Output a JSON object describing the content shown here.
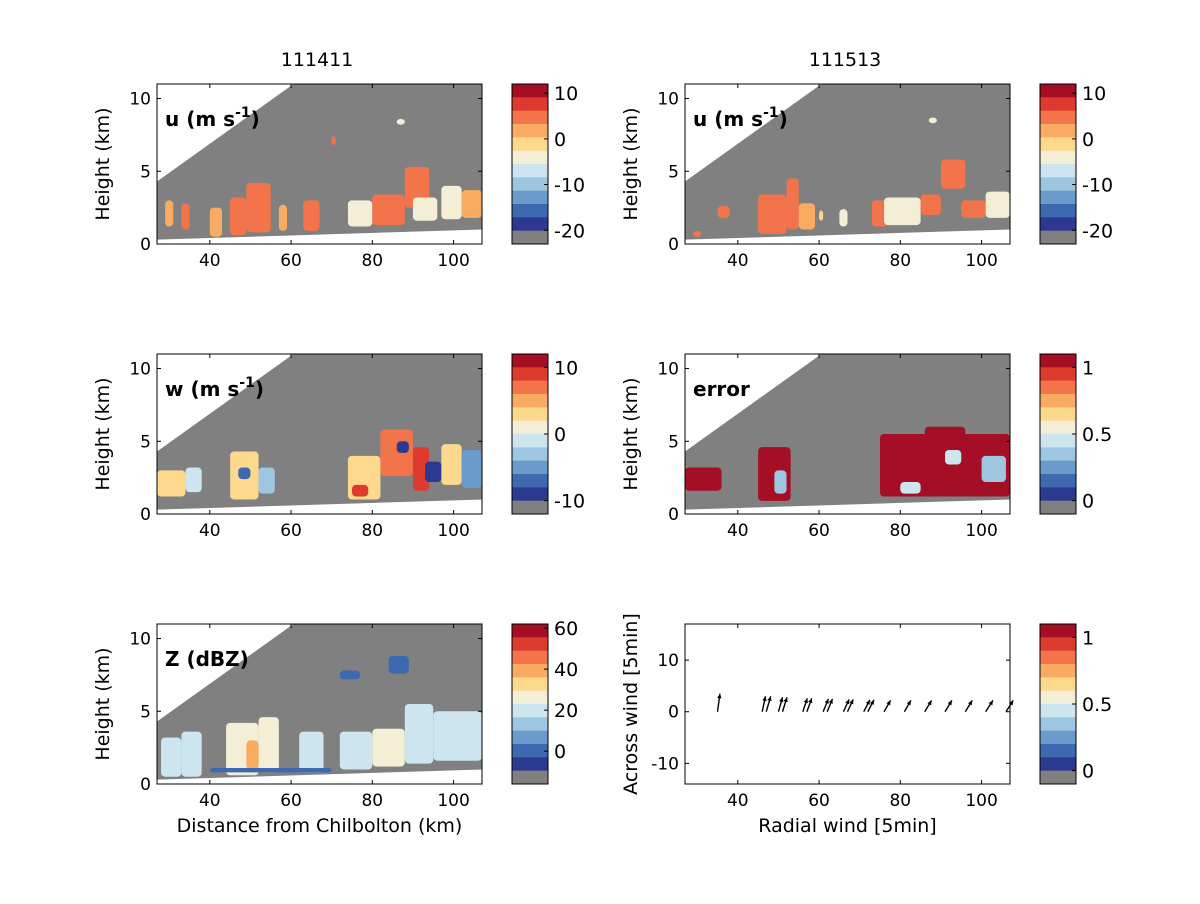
{
  "colormaps": {
    "diverging": [
      "#808080",
      "#2b3990",
      "#3d69b0",
      "#6a9ccb",
      "#9ec6e0",
      "#cde5ef",
      "#f4eed6",
      "#fcd98c",
      "#f9ab61",
      "#f3744a",
      "#dc3b2e",
      "#a50f26"
    ]
  },
  "columns": [
    {
      "title": "111411"
    },
    {
      "title": "111513"
    }
  ],
  "chart_data": [
    {
      "id": "u-111411",
      "type": "heatmap",
      "column": 0,
      "row": 0,
      "label_main": "u (m s",
      "label_sup": "-1",
      "label_end": ")",
      "xlabel": "",
      "ylabel": "Height (km)",
      "xlim": [
        27,
        107
      ],
      "ylim": [
        0,
        11
      ],
      "xticks": [
        40,
        60,
        80,
        100
      ],
      "yticks": [
        0,
        5,
        10
      ],
      "colorbar": {
        "ticks": [
          10,
          0,
          -10,
          -20
        ],
        "range": [
          -23,
          12
        ]
      },
      "cells": [
        {
          "x": [
            29,
            31
          ],
          "y": [
            1.2,
            3.0
          ],
          "v": 2
        },
        {
          "x": [
            33,
            35
          ],
          "y": [
            1.0,
            2.8
          ],
          "v": 3
        },
        {
          "x": [
            40,
            43
          ],
          "y": [
            0.5,
            2.5
          ],
          "v": 2
        },
        {
          "x": [
            45,
            49
          ],
          "y": [
            0.6,
            3.2
          ],
          "v": 4
        },
        {
          "x": [
            49,
            55
          ],
          "y": [
            0.8,
            4.2
          ],
          "v": 3
        },
        {
          "x": [
            57,
            59
          ],
          "y": [
            0.9,
            2.7
          ],
          "v": 2
        },
        {
          "x": [
            63,
            67
          ],
          "y": [
            0.9,
            3.0
          ],
          "v": 3
        },
        {
          "x": [
            74,
            80
          ],
          "y": [
            1.2,
            3.0
          ],
          "v": -4
        },
        {
          "x": [
            80,
            88
          ],
          "y": [
            1.3,
            3.4
          ],
          "v": 3
        },
        {
          "x": [
            88,
            94
          ],
          "y": [
            2.5,
            5.3
          ],
          "v": 4
        },
        {
          "x": [
            90,
            96
          ],
          "y": [
            1.6,
            3.2
          ],
          "v": -6
        },
        {
          "x": [
            97,
            102
          ],
          "y": [
            1.7,
            4.0
          ],
          "v": -7
        },
        {
          "x": [
            102,
            107
          ],
          "y": [
            1.8,
            3.7
          ],
          "v": 2
        },
        {
          "x": [
            70,
            71
          ],
          "y": [
            6.8,
            7.4
          ],
          "v": 4
        },
        {
          "x": [
            86,
            88
          ],
          "y": [
            8.2,
            8.6
          ],
          "v": -5
        }
      ]
    },
    {
      "id": "u-111513",
      "type": "heatmap",
      "column": 1,
      "row": 0,
      "label_main": "u (m s",
      "label_sup": "-1",
      "label_end": ")",
      "xlabel": "",
      "ylabel": "Height (km)",
      "xlim": [
        27,
        107
      ],
      "ylim": [
        0,
        11
      ],
      "xticks": [
        40,
        60,
        80,
        100
      ],
      "yticks": [
        0,
        5,
        10
      ],
      "colorbar": {
        "ticks": [
          10,
          0,
          -10,
          -20
        ],
        "range": [
          -23,
          12
        ]
      },
      "cells": [
        {
          "x": [
            29,
            31
          ],
          "y": [
            0.5,
            0.9
          ],
          "v": 5
        },
        {
          "x": [
            35,
            38
          ],
          "y": [
            1.8,
            2.6
          ],
          "v": 3
        },
        {
          "x": [
            45,
            52
          ],
          "y": [
            0.7,
            3.4
          ],
          "v": 3
        },
        {
          "x": [
            52,
            55
          ],
          "y": [
            1.0,
            4.5
          ],
          "v": 4
        },
        {
          "x": [
            55,
            59
          ],
          "y": [
            1.0,
            2.8
          ],
          "v": 2
        },
        {
          "x": [
            60,
            61
          ],
          "y": [
            1.6,
            2.3
          ],
          "v": -3
        },
        {
          "x": [
            65,
            67
          ],
          "y": [
            1.2,
            2.4
          ],
          "v": -5
        },
        {
          "x": [
            73,
            77
          ],
          "y": [
            1.2,
            3.0
          ],
          "v": 3
        },
        {
          "x": [
            76,
            85
          ],
          "y": [
            1.3,
            3.2
          ],
          "v": -5
        },
        {
          "x": [
            85,
            90
          ],
          "y": [
            2.0,
            3.4
          ],
          "v": 3
        },
        {
          "x": [
            90,
            96
          ],
          "y": [
            3.8,
            5.8
          ],
          "v": 4
        },
        {
          "x": [
            95,
            101
          ],
          "y": [
            1.8,
            3.0
          ],
          "v": 3
        },
        {
          "x": [
            101,
            107
          ],
          "y": [
            1.8,
            3.6
          ],
          "v": -6
        },
        {
          "x": [
            87,
            89
          ],
          "y": [
            8.3,
            8.7
          ],
          "v": -4
        }
      ]
    },
    {
      "id": "w-111411",
      "type": "heatmap",
      "column": 0,
      "row": 1,
      "label_main": "w (m s",
      "label_sup": "-1",
      "label_end": ")",
      "xlabel": "",
      "ylabel": "Height (km)",
      "xlim": [
        27,
        107
      ],
      "ylim": [
        0,
        11
      ],
      "xticks": [
        40,
        60,
        80,
        100
      ],
      "yticks": [
        0,
        5,
        10
      ],
      "colorbar": {
        "ticks": [
          10,
          0,
          -10
        ],
        "range": [
          -12,
          12
        ]
      },
      "cells": [
        {
          "x": [
            27,
            34
          ],
          "y": [
            1.2,
            3.0
          ],
          "v": 2
        },
        {
          "x": [
            34,
            38
          ],
          "y": [
            1.5,
            3.2
          ],
          "v": -3
        },
        {
          "x": [
            45,
            52
          ],
          "y": [
            1.0,
            4.3
          ],
          "v": 3
        },
        {
          "x": [
            47,
            50
          ],
          "y": [
            2.4,
            3.2
          ],
          "v": -9
        },
        {
          "x": [
            52,
            56
          ],
          "y": [
            1.4,
            3.2
          ],
          "v": -4
        },
        {
          "x": [
            74,
            82
          ],
          "y": [
            1.0,
            4.0
          ],
          "v": 2
        },
        {
          "x": [
            75,
            79
          ],
          "y": [
            1.2,
            2.0
          ],
          "v": 9
        },
        {
          "x": [
            82,
            90
          ],
          "y": [
            2.6,
            5.8
          ],
          "v": 6
        },
        {
          "x": [
            86,
            89
          ],
          "y": [
            4.2,
            5.0
          ],
          "v": -10
        },
        {
          "x": [
            90,
            94
          ],
          "y": [
            1.6,
            4.6
          ],
          "v": 8
        },
        {
          "x": [
            93,
            97
          ],
          "y": [
            2.2,
            3.6
          ],
          "v": -11
        },
        {
          "x": [
            97,
            102
          ],
          "y": [
            2.0,
            4.8
          ],
          "v": 3
        },
        {
          "x": [
            102,
            107
          ],
          "y": [
            1.8,
            4.4
          ],
          "v": -6
        }
      ]
    },
    {
      "id": "error-111513",
      "type": "heatmap",
      "column": 1,
      "row": 1,
      "label_main": "error",
      "label_sup": "",
      "label_end": "",
      "xlabel": "",
      "ylabel": "Height (km)",
      "xlim": [
        27,
        107
      ],
      "ylim": [
        0,
        11
      ],
      "xticks": [
        40,
        60,
        80,
        100
      ],
      "yticks": [
        0,
        5,
        10
      ],
      "colorbar": {
        "ticks": [
          1,
          0.5,
          0
        ],
        "range": [
          -0.1,
          1.1
        ]
      },
      "cells": [
        {
          "x": [
            27,
            36
          ],
          "y": [
            1.6,
            3.2
          ],
          "v": 1.05
        },
        {
          "x": [
            45,
            53
          ],
          "y": [
            0.9,
            4.6
          ],
          "v": 1.05
        },
        {
          "x": [
            49,
            52
          ],
          "y": [
            1.4,
            3.0
          ],
          "v": 0.3
        },
        {
          "x": [
            75,
            107
          ],
          "y": [
            1.2,
            5.5
          ],
          "v": 1.05
        },
        {
          "x": [
            86,
            96
          ],
          "y": [
            4.0,
            6.0
          ],
          "v": 1.05
        },
        {
          "x": [
            80,
            85
          ],
          "y": [
            1.4,
            2.2
          ],
          "v": 0.35
        },
        {
          "x": [
            91,
            95
          ],
          "y": [
            3.4,
            4.4
          ],
          "v": 0.4
        },
        {
          "x": [
            100,
            106
          ],
          "y": [
            2.2,
            4.0
          ],
          "v": 0.3
        }
      ]
    },
    {
      "id": "z-111411",
      "type": "heatmap",
      "column": 0,
      "row": 2,
      "label_main": "Z (dBZ)",
      "label_sup": "",
      "label_end": "",
      "xlabel": "Distance from Chilbolton (km)",
      "ylabel": "Height (km)",
      "xlim": [
        27,
        107
      ],
      "ylim": [
        0,
        11
      ],
      "xticks": [
        40,
        60,
        80,
        100
      ],
      "yticks": [
        0,
        5,
        10
      ],
      "colorbar": {
        "ticks": [
          60,
          40,
          20,
          0
        ],
        "range": [
          -16,
          62
        ]
      },
      "cells": [
        {
          "x": [
            28,
            33
          ],
          "y": [
            0.5,
            3.2
          ],
          "v": 16
        },
        {
          "x": [
            33,
            38
          ],
          "y": [
            0.5,
            3.6
          ],
          "v": 18
        },
        {
          "x": [
            44,
            52
          ],
          "y": [
            0.6,
            4.2
          ],
          "v": 22
        },
        {
          "x": [
            52,
            57
          ],
          "y": [
            0.8,
            4.6
          ],
          "v": 20
        },
        {
          "x": [
            49,
            52
          ],
          "y": [
            1.0,
            3.0
          ],
          "v": 35
        },
        {
          "x": [
            62,
            68
          ],
          "y": [
            0.8,
            3.6
          ],
          "v": 18
        },
        {
          "x": [
            72,
            80
          ],
          "y": [
            1.0,
            3.6
          ],
          "v": 16
        },
        {
          "x": [
            80,
            88
          ],
          "y": [
            1.2,
            3.8
          ],
          "v": 20
        },
        {
          "x": [
            88,
            95
          ],
          "y": [
            1.4,
            5.5
          ],
          "v": 16
        },
        {
          "x": [
            95,
            107
          ],
          "y": [
            1.6,
            5.0
          ],
          "v": 14
        },
        {
          "x": [
            84,
            89
          ],
          "y": [
            7.6,
            8.8
          ],
          "v": -5
        },
        {
          "x": [
            72,
            77
          ],
          "y": [
            7.2,
            7.8
          ],
          "v": -6
        },
        {
          "x": [
            40,
            70
          ],
          "y": [
            0.8,
            1.1
          ],
          "v": -8
        }
      ]
    },
    {
      "id": "arrows-111513",
      "type": "scatter",
      "column": 1,
      "row": 2,
      "label_main": "",
      "label_sup": "",
      "label_end": "",
      "xlabel": "Radial wind [5min]",
      "ylabel": "Across wind [5min]",
      "xlim": [
        27,
        107
      ],
      "ylim": [
        -14,
        17
      ],
      "xticks": [
        40,
        60,
        80,
        100
      ],
      "yticks": [
        -10,
        0,
        10
      ],
      "colorbar": {
        "ticks": [
          1,
          0.5,
          0
        ],
        "range": [
          -0.1,
          1.1
        ]
      },
      "arrows": [
        {
          "x": 35,
          "y": 0,
          "u": 0.6,
          "v": 3.5
        },
        {
          "x": 46,
          "y": 0,
          "u": 0.8,
          "v": 3.0
        },
        {
          "x": 47,
          "y": 0,
          "u": 1.1,
          "v": 3.0
        },
        {
          "x": 50,
          "y": 0,
          "u": 1.0,
          "v": 2.8
        },
        {
          "x": 51,
          "y": 0,
          "u": 1.1,
          "v": 2.8
        },
        {
          "x": 56,
          "y": 0,
          "u": 1.1,
          "v": 2.6
        },
        {
          "x": 57,
          "y": 0,
          "u": 1.2,
          "v": 2.6
        },
        {
          "x": 61,
          "y": 0,
          "u": 1.3,
          "v": 2.5
        },
        {
          "x": 62,
          "y": 0,
          "u": 1.3,
          "v": 2.5
        },
        {
          "x": 66,
          "y": 0,
          "u": 1.4,
          "v": 2.4
        },
        {
          "x": 67,
          "y": 0,
          "u": 1.4,
          "v": 2.4
        },
        {
          "x": 71,
          "y": 0,
          "u": 1.5,
          "v": 2.3
        },
        {
          "x": 72,
          "y": 0,
          "u": 1.5,
          "v": 2.3
        },
        {
          "x": 76,
          "y": 0,
          "u": 1.6,
          "v": 2.2
        },
        {
          "x": 81,
          "y": 0,
          "u": 1.6,
          "v": 2.2
        },
        {
          "x": 86,
          "y": 0,
          "u": 1.7,
          "v": 2.2
        },
        {
          "x": 91,
          "y": 0,
          "u": 1.7,
          "v": 2.2
        },
        {
          "x": 96,
          "y": 0,
          "u": 1.7,
          "v": 2.2
        },
        {
          "x": 101,
          "y": 0,
          "u": 1.8,
          "v": 2.2
        },
        {
          "x": 106,
          "y": 0,
          "u": 1.8,
          "v": 2.2
        }
      ]
    }
  ]
}
